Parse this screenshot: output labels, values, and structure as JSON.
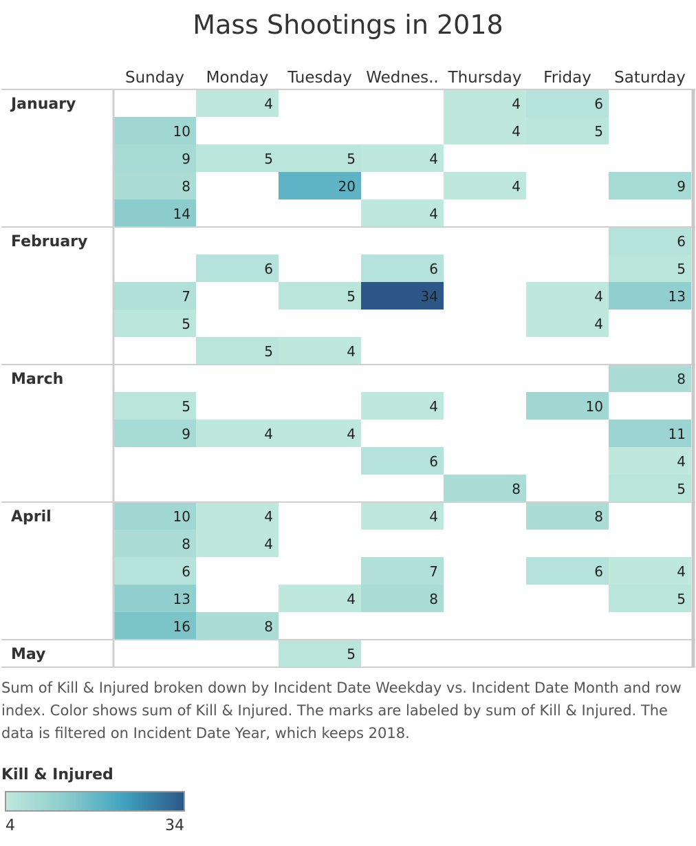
{
  "title": "Mass Shootings in 2018",
  "caption": "Sum of Kill & Injured broken down by Incident Date Weekday vs. Incident Date Month and row index.  Color shows sum of Kill & Injured.  The marks are labeled by sum of Kill & Injured. The data is filtered on Incident Date Year, which keeps 2018.",
  "legend": {
    "title": "Kill & Injured",
    "min": "4",
    "max": "34"
  },
  "colors": {
    "low": "#bfe8dd",
    "mid1": "#8ccccc",
    "mid2": "#3fa2bf",
    "high": "#2c5787"
  },
  "chart_data": {
    "type": "heatmap",
    "columns": [
      "Sunday",
      "Monday",
      "Tuesday",
      "Wednes..",
      "Thursday",
      "Friday",
      "Saturday"
    ],
    "months": [
      {
        "name": "January",
        "rows": [
          [
            null,
            4,
            null,
            null,
            4,
            6,
            null
          ],
          [
            10,
            null,
            null,
            null,
            4,
            5,
            null
          ],
          [
            9,
            5,
            5,
            4,
            null,
            null,
            null
          ],
          [
            8,
            null,
            20,
            null,
            4,
            null,
            9
          ],
          [
            14,
            null,
            null,
            4,
            null,
            null,
            null
          ]
        ]
      },
      {
        "name": "February",
        "rows": [
          [
            null,
            null,
            null,
            null,
            null,
            null,
            6
          ],
          [
            null,
            6,
            null,
            6,
            null,
            null,
            5
          ],
          [
            7,
            null,
            5,
            34,
            null,
            4,
            13
          ],
          [
            5,
            null,
            null,
            null,
            null,
            4,
            null
          ],
          [
            null,
            5,
            4,
            null,
            null,
            null,
            null
          ]
        ]
      },
      {
        "name": "March",
        "rows": [
          [
            null,
            null,
            null,
            null,
            null,
            null,
            8
          ],
          [
            5,
            null,
            null,
            4,
            null,
            10,
            null
          ],
          [
            9,
            4,
            4,
            null,
            null,
            null,
            11
          ],
          [
            null,
            null,
            null,
            6,
            null,
            null,
            4
          ],
          [
            null,
            null,
            null,
            null,
            8,
            null,
            5
          ]
        ]
      },
      {
        "name": "April",
        "rows": [
          [
            10,
            4,
            null,
            4,
            null,
            8,
            null
          ],
          [
            8,
            4,
            null,
            null,
            null,
            null,
            null
          ],
          [
            6,
            null,
            null,
            7,
            null,
            6,
            4
          ],
          [
            13,
            null,
            4,
            8,
            null,
            null,
            5
          ],
          [
            16,
            8,
            null,
            null,
            null,
            null,
            null
          ]
        ]
      },
      {
        "name": "May",
        "rows": [
          [
            null,
            null,
            5,
            null,
            null,
            null,
            null
          ]
        ]
      }
    ],
    "color_range": [
      4,
      34
    ]
  }
}
